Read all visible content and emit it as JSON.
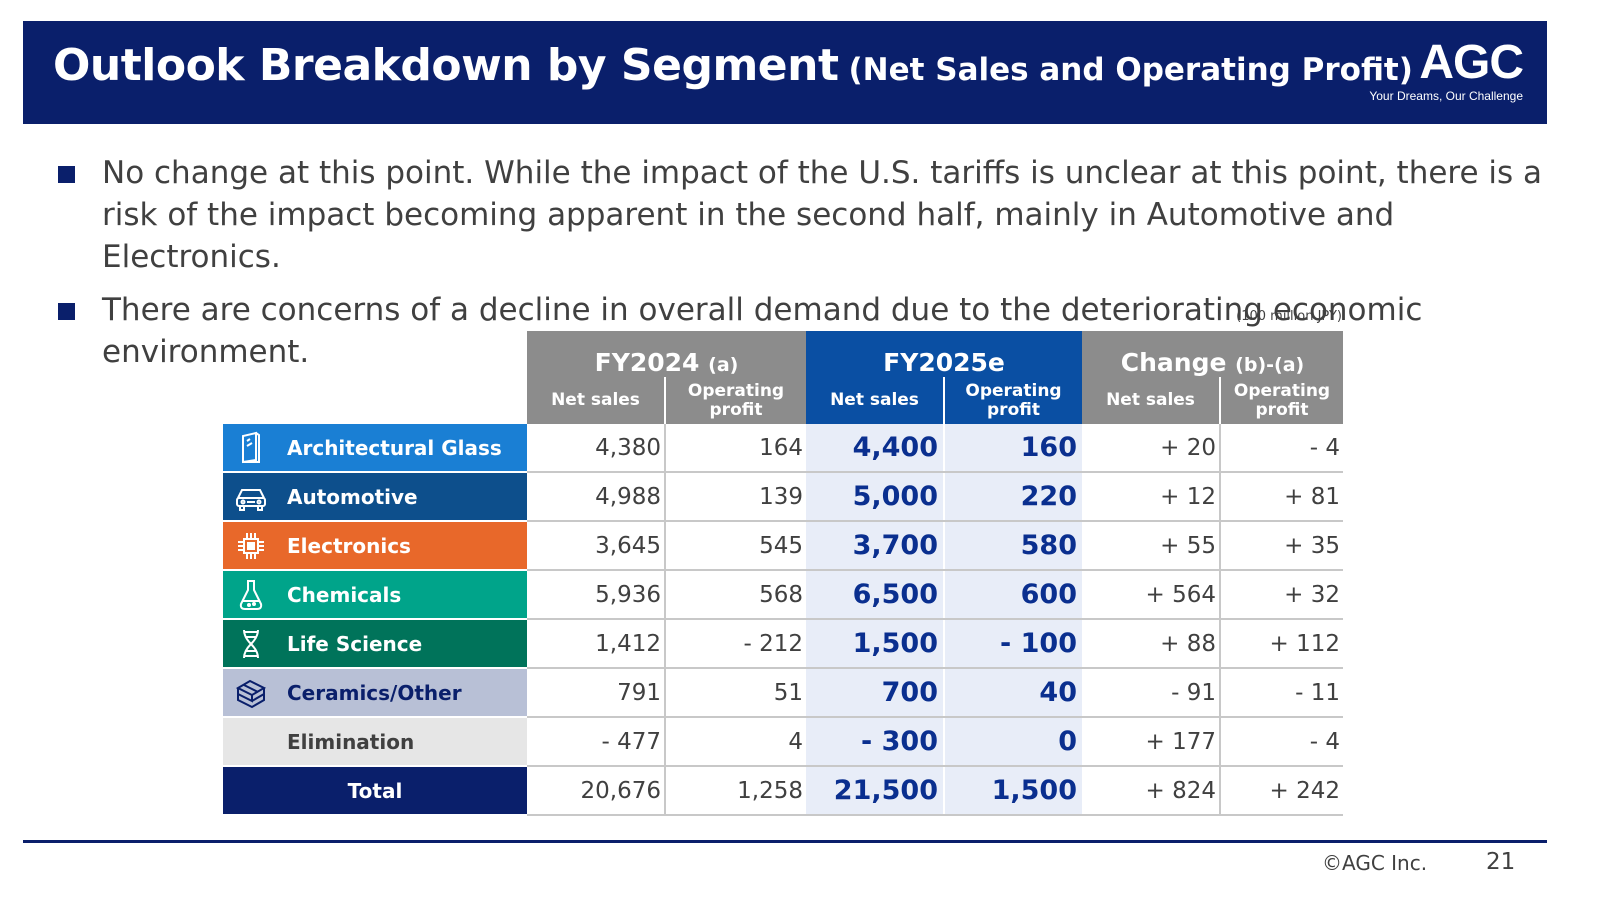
{
  "header": {
    "title_main": "Outlook Breakdown by Segment",
    "title_sub": "(Net Sales and Operating Profit)",
    "logo_text": "AGC",
    "logo_tagline": "Your Dreams, Our Challenge"
  },
  "bullets": [
    "No change at this point.  While the impact of the U.S. tariffs is unclear at this point, there is a risk of the impact becoming apparent in the second half, mainly in Automotive and Electronics.",
    "There are concerns of a decline in overall demand due to the deteriorating economic environment."
  ],
  "table": {
    "unit_note": "(100 million JPY)",
    "groups": {
      "fy2024": {
        "label": "FY2024",
        "suffix": "(a)"
      },
      "fy2025": {
        "label": "FY2025e",
        "suffix": ""
      },
      "change": {
        "label": "Change",
        "suffix": "(b)-(a)"
      }
    },
    "subheaders": {
      "net_sales": "Net sales",
      "operating_profit": "Operating profit"
    },
    "rows": [
      {
        "segment": "Architectural Glass",
        "color": "#1a7fd4",
        "icon": "building-glass-icon",
        "fy24_sales": "4,380",
        "fy24_op": "164",
        "fy25_sales": "4,400",
        "fy25_op": "160",
        "chg_sales": "+ 20",
        "chg_op": "- 4"
      },
      {
        "segment": "Automotive",
        "color": "#0d4f8c",
        "icon": "car-icon",
        "fy24_sales": "4,988",
        "fy24_op": "139",
        "fy25_sales": "5,000",
        "fy25_op": "220",
        "chg_sales": "+ 12",
        "chg_op": "+ 81"
      },
      {
        "segment": "Electronics",
        "color": "#e8682a",
        "icon": "chip-icon",
        "fy24_sales": "3,645",
        "fy24_op": "545",
        "fy25_sales": "3,700",
        "fy25_op": "580",
        "chg_sales": "+ 55",
        "chg_op": "+ 35"
      },
      {
        "segment": "Chemicals",
        "color": "#00a48a",
        "icon": "flask-icon",
        "fy24_sales": "5,936",
        "fy24_op": "568",
        "fy25_sales": "6,500",
        "fy25_op": "600",
        "chg_sales": "+ 564",
        "chg_op": "+ 32"
      },
      {
        "segment": "Life Science",
        "color": "#00735a",
        "icon": "dna-icon",
        "fy24_sales": "1,412",
        "fy24_op": "- 212",
        "fy25_sales": "1,500",
        "fy25_op": "- 100",
        "chg_sales": "+ 88",
        "chg_op": "+ 112"
      },
      {
        "segment": "Ceramics/Other",
        "color": "#b8c0d6",
        "icon": "bricks-icon",
        "fy24_sales": "791",
        "fy24_op": "51",
        "fy25_sales": "700",
        "fy25_op": "40",
        "chg_sales": "- 91",
        "chg_op": "- 11"
      },
      {
        "segment": "Elimination",
        "color": "#e6e6e6",
        "icon": "",
        "fy24_sales": "- 477",
        "fy24_op": "4",
        "fy25_sales": "- 300",
        "fy25_op": "0",
        "chg_sales": "+ 177",
        "chg_op": "- 4"
      },
      {
        "segment": "Total",
        "color": "#0a1f6b",
        "icon": "",
        "fy24_sales": "20,676",
        "fy24_op": "1,258",
        "fy25_sales": "21,500",
        "fy25_op": "1,500",
        "chg_sales": "+ 824",
        "chg_op": "+ 242"
      }
    ]
  },
  "footer": {
    "copyright": "©AGC Inc.",
    "page_number": "21"
  }
}
